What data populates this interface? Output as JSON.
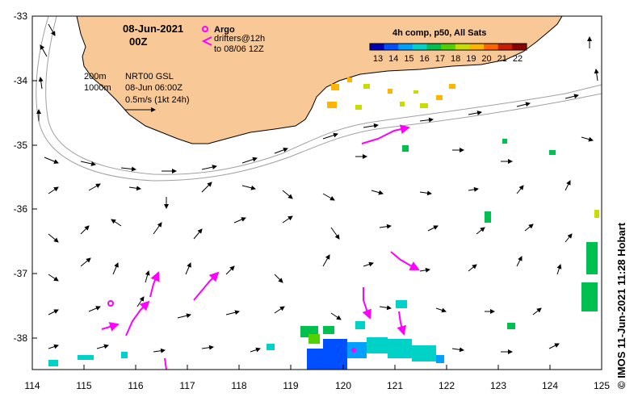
{
  "header": {
    "date": "08-Jun-2021",
    "time": "00Z"
  },
  "legend": {
    "argo_label": "Argo",
    "drifters_label": "drifters@12h",
    "drifters_sub": "to 08/06 12Z",
    "argo_color": "#ff00ff",
    "drifter_color": "#ff00ff"
  },
  "notes": {
    "depth_200": "200m",
    "depth_1000": "1000m",
    "product": "NRT00 GSL",
    "valid": "08-Jun 06:00Z",
    "scale": "0.5m/s (1kt 24h)"
  },
  "colorbar": {
    "title": "4h comp, p50, All Sats",
    "ticks": [
      "13",
      "14",
      "15",
      "16",
      "17",
      "18",
      "19",
      "20",
      "21",
      "22"
    ],
    "colors": [
      "#0000b4",
      "#0050ff",
      "#00a0ff",
      "#00d2c8",
      "#00c050",
      "#50d200",
      "#c8dc00",
      "#ffb400",
      "#ff6400",
      "#c81e00",
      "#8c0000"
    ]
  },
  "axes": {
    "lon_ticks": [
      "114",
      "115",
      "116",
      "117",
      "118",
      "119",
      "120",
      "121",
      "122",
      "123",
      "124",
      "125"
    ],
    "lat_ticks": [
      "-33",
      "-34",
      "-35",
      "-36",
      "-37",
      "-38"
    ],
    "lon_range": [
      114,
      125
    ],
    "lat_range": [
      -38.5,
      -33
    ]
  },
  "credit": "© IMOS 11-Jun-2021 11:28 Hobart",
  "colors": {
    "land": "#f8c896",
    "coast": "#000000",
    "isobath": "#a0a0a0"
  },
  "argo_floats": [
    {
      "lon": 115.45,
      "lat": -37.45
    }
  ]
}
